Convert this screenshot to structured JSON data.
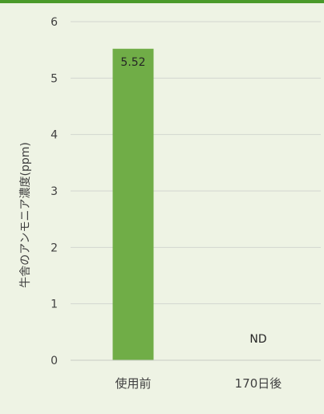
{
  "colors": {
    "bar": "#70ad47",
    "background": "#eef3e4",
    "accent": "#4a9a2a"
  },
  "chart_data": {
    "type": "bar",
    "title": "",
    "xlabel": "",
    "ylabel": "牛舎のアンモニア濃度(ppm)",
    "categories": [
      "使用前",
      "170日後"
    ],
    "values": [
      5.52,
      0
    ],
    "data_labels": [
      "5.52",
      "ND"
    ],
    "ylim": [
      0,
      6
    ],
    "yticks": [
      0,
      1,
      2,
      3,
      4,
      5,
      6
    ],
    "grid": true,
    "legend": "none"
  }
}
